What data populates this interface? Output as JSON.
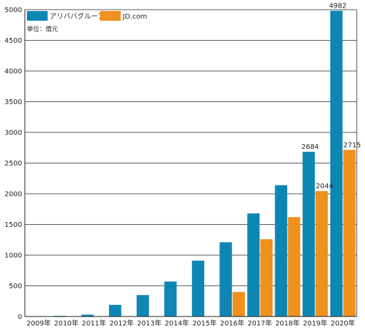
{
  "chart_data": {
    "type": "bar",
    "unit_note": "単位：億元",
    "categories": [
      "2009年",
      "2010年",
      "2011年",
      "2012年",
      "2013年",
      "2014年",
      "2015年",
      "2016年",
      "2017年",
      "2018年",
      "2019年",
      "2020年"
    ],
    "series": [
      {
        "name": "アリババグループ",
        "color": "#0e86b4",
        "values": [
          2,
          10,
          30,
          190,
          350,
          570,
          910,
          1210,
          1680,
          2140,
          2684,
          4982
        ]
      },
      {
        "name": "JD.com",
        "color": "#f0901e",
        "values": [
          0,
          0,
          0,
          0,
          0,
          0,
          0,
          400,
          1260,
          1620,
          2044,
          2715
        ]
      }
    ],
    "data_labels": [
      {
        "series": 0,
        "index": 10,
        "text": "2684"
      },
      {
        "series": 1,
        "index": 10,
        "text": "2044"
      },
      {
        "series": 0,
        "index": 11,
        "text": "4982"
      },
      {
        "series": 1,
        "index": 11,
        "text": "2715"
      }
    ],
    "y_ticks": [
      0,
      500,
      1000,
      1500,
      2000,
      2500,
      3000,
      3500,
      4000,
      4500,
      5000
    ],
    "ylim": [
      0,
      5000
    ],
    "grid": true,
    "legend": "top-left"
  }
}
